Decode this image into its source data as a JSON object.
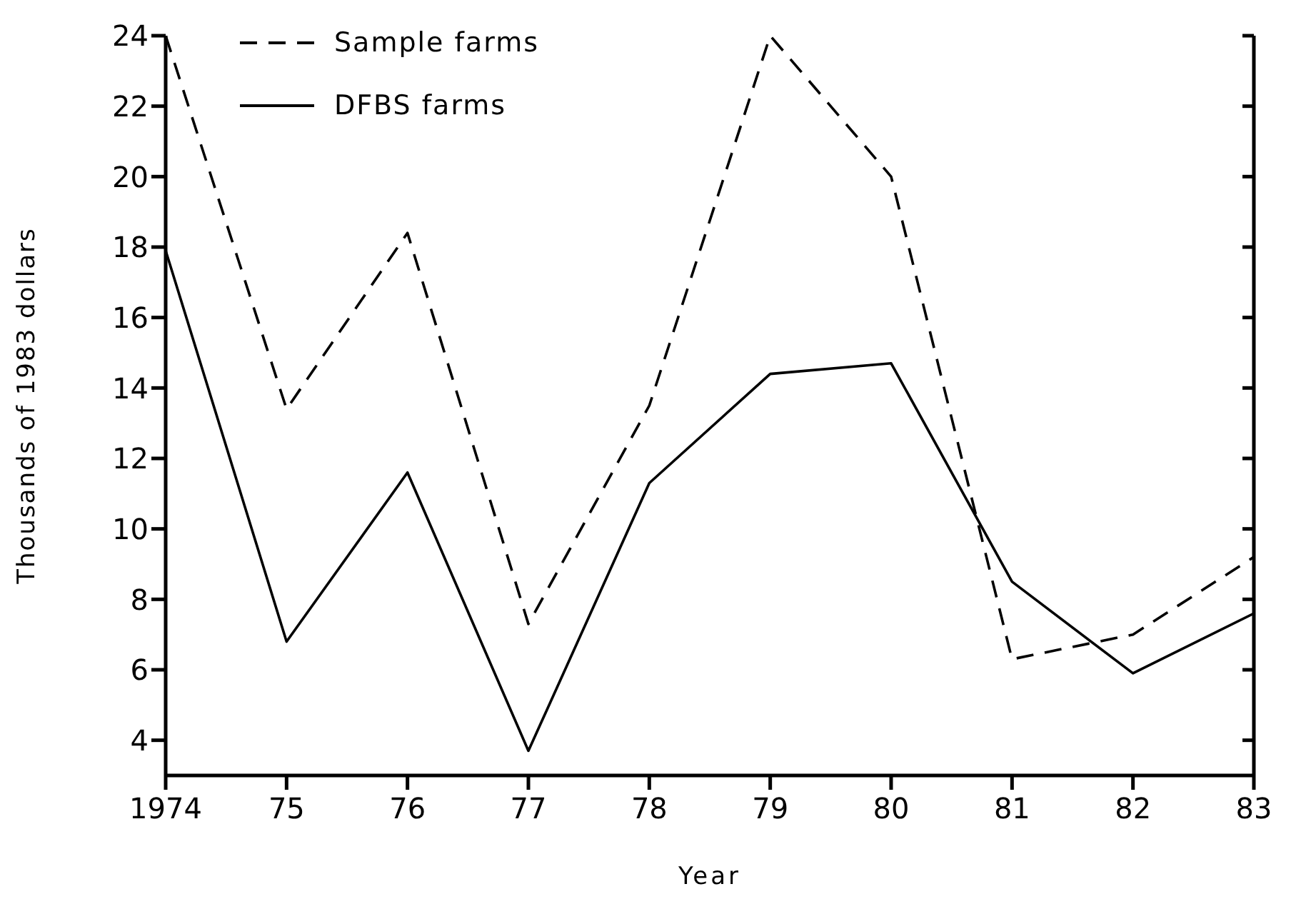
{
  "chart_data": {
    "type": "line",
    "xlabel": "Year",
    "ylabel": "Thousands of 1983 dollars",
    "x": [
      1974,
      1975,
      1976,
      1977,
      1978,
      1979,
      1980,
      1981,
      1982,
      1983
    ],
    "series": [
      {
        "name": "Sample farms",
        "color": "#000000",
        "line_style": "dashed",
        "values": [
          24,
          13.4,
          18.4,
          7.3,
          13.5,
          24,
          20,
          6.3,
          7.0,
          9.2
        ]
      },
      {
        "name": "DFBS farms",
        "color": "#000000",
        "line_style": "solid",
        "values": [
          17.9,
          6.8,
          11.6,
          3.7,
          11.3,
          14.4,
          14.7,
          8.5,
          5.9,
          7.6
        ]
      }
    ],
    "xlim": [
      1974,
      1983
    ],
    "xticks": [
      {
        "value": 1974,
        "label": "1974"
      },
      {
        "value": 1975,
        "label": "75"
      },
      {
        "value": 1976,
        "label": "76"
      },
      {
        "value": 1977,
        "label": "77"
      },
      {
        "value": 1978,
        "label": "78"
      },
      {
        "value": 1979,
        "label": "79"
      },
      {
        "value": 1980,
        "label": "80"
      },
      {
        "value": 1981,
        "label": "81"
      },
      {
        "value": 1982,
        "label": "82"
      },
      {
        "value": 1983,
        "label": "83"
      }
    ],
    "ylim": [
      3,
      24
    ],
    "yticks": [
      4,
      6,
      8,
      10,
      12,
      14,
      16,
      18,
      20,
      22,
      24
    ],
    "grid": false,
    "legend": "top left",
    "marker": "none"
  }
}
